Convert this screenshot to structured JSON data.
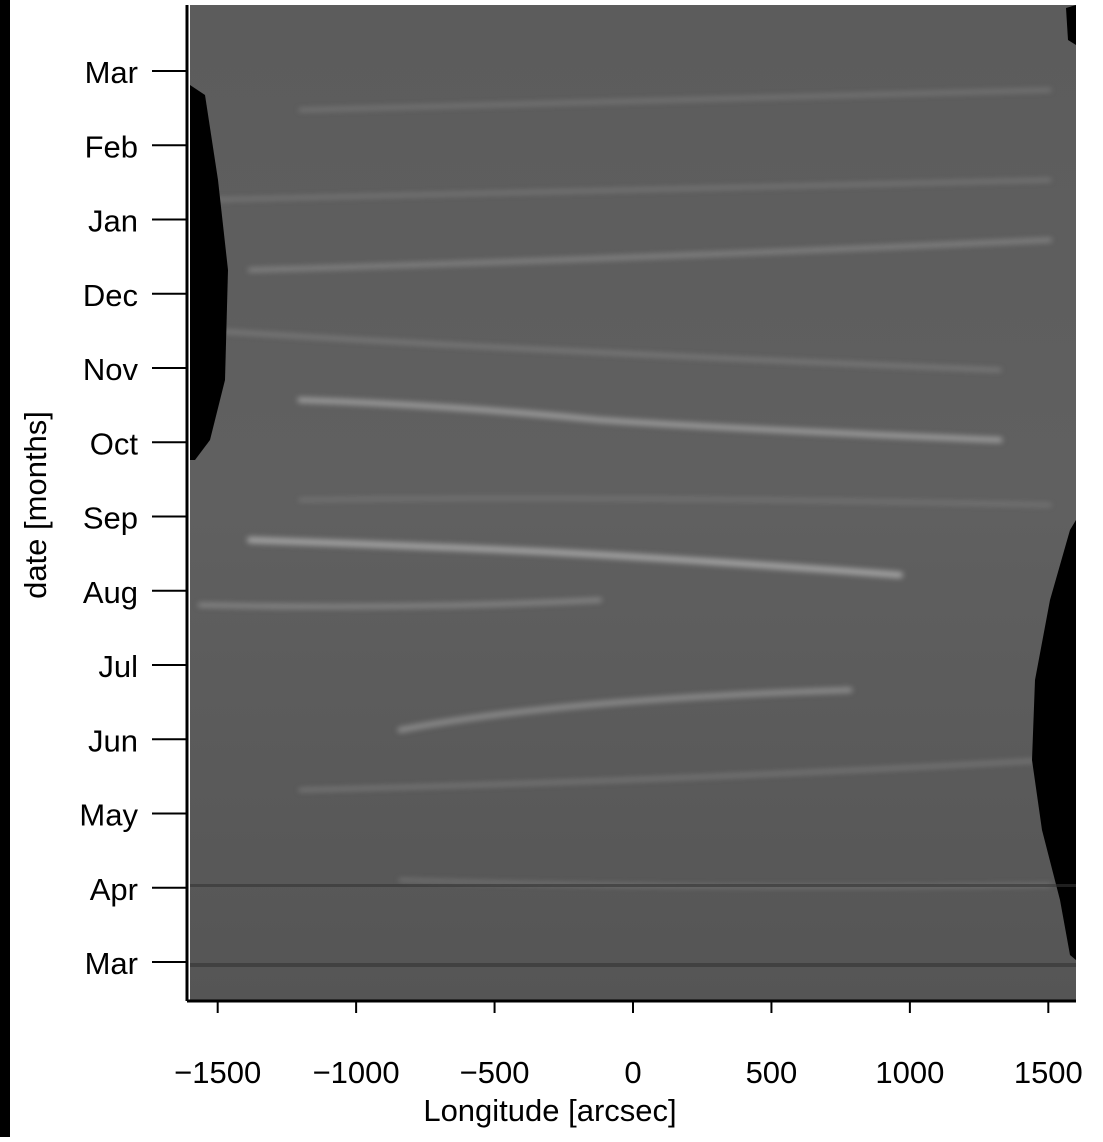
{
  "chart_data": {
    "type": "image",
    "xlabel": "Longitude [arcsec]",
    "ylabel": "date [months]",
    "xlim": [
      -1600,
      1600
    ],
    "xticks": [
      {
        "value": -1500,
        "label": "−1500"
      },
      {
        "value": -1000,
        "label": "−1000"
      },
      {
        "value": -500,
        "label": "−500"
      },
      0,
      500,
      1000,
      1500
    ],
    "ycategories": [
      "Mar",
      "Apr",
      "May",
      "Jun",
      "Jul",
      "Aug",
      "Sep",
      "Oct",
      "Nov",
      "Dec",
      "Jan",
      "Feb",
      "Mar"
    ],
    "colormap": "gray"
  }
}
